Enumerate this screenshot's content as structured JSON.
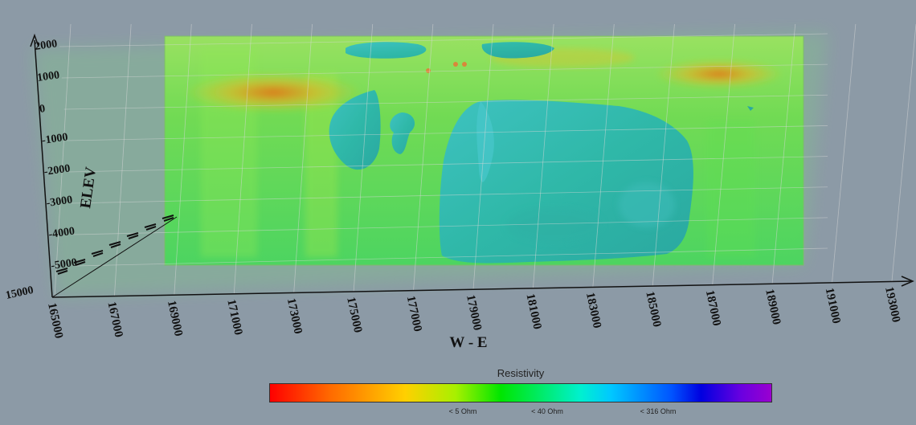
{
  "chart_data": {
    "type": "3d-volume",
    "xlabel": "W - E",
    "ylabel": "ELEV",
    "x_ticks": [
      "165000",
      "167000",
      "169000",
      "171000",
      "173000",
      "175000",
      "177000",
      "179000",
      "181000",
      "183000",
      "185000",
      "187000",
      "189000",
      "191000",
      "193000"
    ],
    "y_ticks": [
      "2000",
      "1000",
      "0",
      "-1000",
      "-2000",
      "-3000",
      "-4000",
      "-5000"
    ],
    "z_partial_label": "15000",
    "colorbar": {
      "title": "Resistivity",
      "ticks": [
        "< 5 Ohm",
        "< 40 Ohm",
        "< 316 Ohm"
      ],
      "colors": [
        "#ff0000",
        "#ffd000",
        "#00e600",
        "#00f0d0",
        "#0000e0",
        "#9a00d0"
      ]
    },
    "features": [
      {
        "name": "conductive-zone-west",
        "color": "#e07a1a",
        "x": 172500,
        "elev": 700
      },
      {
        "name": "conductive-zone-east",
        "color": "#e07a1a",
        "x": 187500,
        "elev": 1400
      },
      {
        "name": "resistive-body-main",
        "color": "#2fb8a8",
        "x_range": [
          178500,
          187500
        ],
        "elev_range": [
          -5000,
          700
        ]
      },
      {
        "name": "resistive-body-west",
        "color": "#2fa8b8",
        "x_range": [
          174500,
          176500
        ],
        "elev_range": [
          -1800,
          400
        ]
      },
      {
        "name": "resistive-body-small",
        "color": "#2fb0b0",
        "x_range": [
          177200,
          178500
        ],
        "elev_range": [
          -1200,
          0
        ]
      },
      {
        "name": "resistive-body-top",
        "color": "#2fb0a8",
        "x_range": [
          175500,
          182500
        ],
        "elev_range": [
          1800,
          2200
        ]
      }
    ]
  }
}
